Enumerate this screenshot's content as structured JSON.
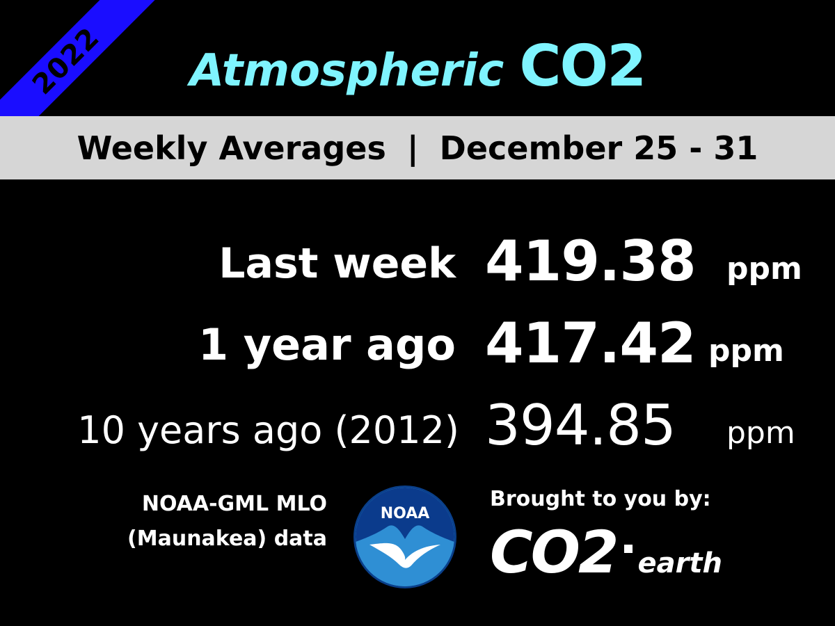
{
  "corner_badge": "2022",
  "title": {
    "word": "Atmospheric",
    "co2": "CO2"
  },
  "band": {
    "left": "Weekly Averages",
    "separator": "|",
    "right": "December 25 - 31"
  },
  "rows": [
    {
      "label": "Last week",
      "value": "419.38",
      "unit": "ppm"
    },
    {
      "label": "1 year ago",
      "value": "417.42",
      "unit": "ppm"
    },
    {
      "label": "10 years ago (2012)",
      "value": "394.85",
      "unit": "ppm"
    }
  ],
  "source": {
    "line1": "NOAA-GML MLO",
    "line2": "(Maunakea) data"
  },
  "logo": {
    "text": "NOAA",
    "icon": "noaa-logo-icon"
  },
  "credit": {
    "line": "Brought to you by:",
    "brand_co2": "CO2",
    "brand_earth": "earth"
  },
  "colors": {
    "background": "#000000",
    "title": "#7ff4ff",
    "band": "#d6d6d6",
    "corner": "#1a0dff",
    "text": "#ffffff"
  }
}
